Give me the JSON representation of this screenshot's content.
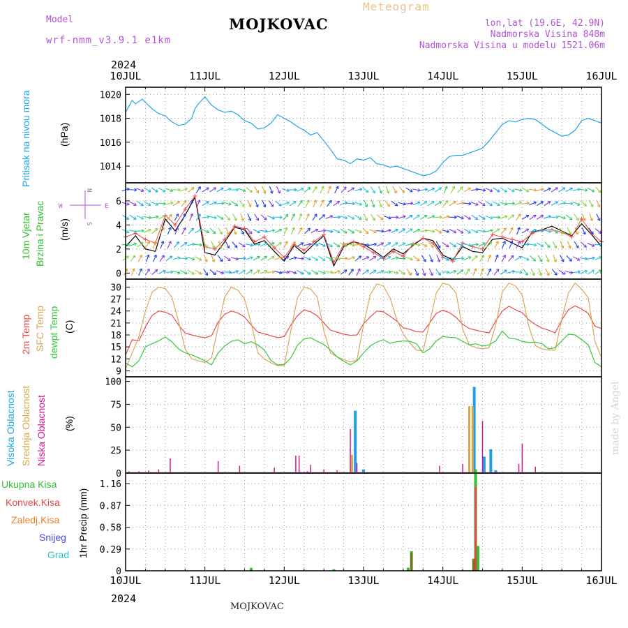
{
  "header": {
    "model_label": "Model",
    "model_name": "wrf-nmm_v3.9.1 e1km",
    "title": "MOJKOVAC",
    "meteogram_label": "Meteogram",
    "lonlat": "lon,lat (19.6E, 42.9N)",
    "elevation": "Nadmorska Visina 848m",
    "model_elevation": "Nadmorska Visina u modelu 1521.06m"
  },
  "footer": {
    "station": "MOJKOVAC",
    "credit": "made by Angel"
  },
  "axis_x": {
    "year": "2024",
    "labels": [
      "10JUL",
      "11JUL",
      "12JUL",
      "13JUL",
      "14JUL",
      "15JUL",
      "16JUL"
    ]
  },
  "colors": {
    "pressure": "#1ea6e6",
    "temp2m": "#e84a4a",
    "sfc": "#dba65a",
    "dewpt": "#33c83a",
    "high": "#1e9fe8",
    "mid": "#d6a84a",
    "low": "#d6168e",
    "total": "#2fbf2f",
    "conv": "#e24747",
    "frozen": "#f07f2a",
    "snow": "#4a4ae0",
    "graupel": "#2ac6c6"
  },
  "panels": {
    "pressure": {
      "label": "Pritisak na nivou mora",
      "unit": "(hPa)"
    },
    "wind": {
      "label1": "10m Vjetar",
      "label2": "Brzina i Pravac",
      "unit": "(m/s)",
      "compass": [
        "N",
        "S",
        "W",
        "E"
      ]
    },
    "temp": {
      "label1": "2m Temp",
      "label2": "SFC Temp",
      "label3": "dewpt Temp",
      "unit": "(C)"
    },
    "cloud": {
      "label1": "Visoka Oblacnost",
      "label2": "Srednja Oblacnost",
      "label3": "Niska Oblacnost",
      "unit": "(%)"
    },
    "precip": {
      "legend": [
        "Ukupna Kisa",
        "Konvek.Kisa",
        "Zaledj.Kisa",
        "Snijeg",
        "Grad"
      ],
      "unit": "1hr Precip (mm)"
    }
  },
  "chart_data": [
    {
      "type": "line",
      "name": "pressure",
      "ylim": [
        1012.6,
        1020.6
      ],
      "yticks": [
        1014,
        1016,
        1018,
        1020
      ],
      "x": [
        0,
        2,
        3,
        5,
        8,
        10,
        12,
        14,
        16,
        18,
        20,
        21,
        22,
        24,
        26,
        28,
        30,
        32,
        34,
        36,
        38,
        40,
        42,
        44,
        46,
        48,
        50,
        52,
        54,
        56,
        58,
        60,
        62,
        64,
        66,
        68,
        70,
        72,
        74,
        76,
        78,
        80,
        82,
        84,
        86,
        88,
        90,
        92,
        94,
        96,
        98,
        100,
        102,
        104,
        106,
        108,
        110,
        112,
        114,
        116,
        118,
        120,
        122,
        124,
        126,
        128,
        130,
        132,
        134,
        136,
        138,
        140,
        142,
        144
      ],
      "series": [
        {
          "values": [
            1018.5,
            1019.5,
            1019.2,
            1019.6,
            1018.8,
            1018.4,
            1018.2,
            1017.7,
            1017.4,
            1017.5,
            1018.0,
            1018.8,
            1019.2,
            1019.8,
            1019.1,
            1018.7,
            1018.5,
            1018.6,
            1018.3,
            1017.8,
            1017.6,
            1017.1,
            1017.2,
            1017.6,
            1018.3,
            1018.0,
            1017.7,
            1017.3,
            1017.0,
            1016.6,
            1016.8,
            1016.1,
            1015.4,
            1014.6,
            1014.5,
            1014.2,
            1014.6,
            1014.5,
            1014.7,
            1014.2,
            1014.1,
            1013.9,
            1014.0,
            1013.8,
            1013.6,
            1013.4,
            1013.2,
            1013.3,
            1013.6,
            1014.3,
            1014.8,
            1014.9,
            1014.9,
            1015.1,
            1015.3,
            1015.5,
            1016.1,
            1016.8,
            1017.5,
            1017.8,
            1017.7,
            1017.9,
            1018.0,
            1017.9,
            1017.5,
            1017.1,
            1016.8,
            1016.5,
            1016.6,
            1017.0,
            1017.8,
            1018.0,
            1017.8,
            1017.6
          ]
        }
      ]
    },
    {
      "type": "line",
      "name": "wind",
      "ylim": [
        -0.5,
        7.5
      ],
      "yticks": [
        0,
        2,
        4,
        6
      ],
      "x": [
        0,
        3,
        6,
        9,
        12,
        15,
        18,
        21,
        24,
        27,
        30,
        33,
        36,
        39,
        42,
        45,
        48,
        51,
        54,
        57,
        60,
        63,
        66,
        69,
        72,
        75,
        78,
        81,
        84,
        87,
        90,
        93,
        96,
        99,
        102,
        105,
        108,
        111,
        114,
        117,
        120,
        123,
        126,
        129,
        132,
        135,
        138,
        141,
        144
      ],
      "series": [
        {
          "name": "speed",
          "values": [
            2.2,
            3.1,
            2.0,
            1.8,
            4.5,
            3.5,
            4.8,
            6.3,
            1.7,
            1.5,
            2.6,
            3.8,
            3.6,
            2.4,
            2.7,
            1.8,
            1.0,
            2.3,
            1.6,
            2.4,
            3.1,
            0.6,
            2.2,
            2.6,
            2.4,
            1.9,
            1.3,
            2.0,
            1.6,
            2.3,
            2.9,
            2.7,
            1.5,
            1.1,
            2.2,
            1.8,
            1.7,
            2.8,
            2.9,
            2.5,
            2.1,
            3.4,
            3.6,
            3.9,
            3.5,
            3.1,
            4.1,
            3.2,
            2.2
          ]
        },
        {
          "name": "gust",
          "values": [
            3.0,
            3.3,
            2.8,
            2.5,
            4.8,
            4.0,
            5.3,
            6.4,
            2.2,
            2.0,
            2.8,
            3.9,
            3.7,
            2.6,
            3.0,
            2.1,
            1.3,
            2.4,
            1.9,
            2.6,
            3.2,
            0.9,
            2.4,
            2.6,
            2.2,
            1.7,
            1.2,
            1.8,
            1.4,
            2.4,
            2.9,
            2.5,
            1.3,
            1.0,
            2.5,
            2.2,
            2.0,
            3.2,
            3.0,
            2.8,
            2.6,
            3.3,
            3.6,
            3.6,
            3.4,
            3.0,
            4.5,
            3.3,
            2.6
          ]
        }
      ]
    },
    {
      "type": "line",
      "name": "temperature",
      "ylim": [
        7.5,
        32
      ],
      "yticks": [
        9,
        12,
        15,
        18,
        21,
        24,
        27,
        30
      ],
      "x": [
        0,
        2,
        4,
        6,
        8,
        10,
        12,
        14,
        16,
        18,
        20,
        22,
        24,
        26,
        28,
        30,
        32,
        34,
        36,
        38,
        40,
        42,
        44,
        46,
        48,
        50,
        52,
        54,
        56,
        58,
        60,
        62,
        64,
        66,
        68,
        70,
        72,
        74,
        76,
        78,
        80,
        82,
        84,
        86,
        88,
        90,
        92,
        94,
        96,
        98,
        100,
        102,
        104,
        106,
        108,
        110,
        112,
        114,
        116,
        118,
        120,
        122,
        124,
        126,
        128,
        130,
        132,
        134,
        136,
        138,
        140,
        142,
        144
      ],
      "series": [
        {
          "name": "2m",
          "values": [
            13,
            16.8,
            16.5,
            20,
            22.9,
            24,
            23.7,
            23,
            20.5,
            18.5,
            18,
            17.6,
            17.3,
            17.8,
            21.2,
            23.2,
            24,
            23.5,
            22.5,
            20.5,
            18.7,
            18.3,
            17.8,
            17.3,
            17.6,
            20.5,
            22.8,
            24.3,
            23.8,
            22.8,
            21,
            19.2,
            18.7,
            18.2,
            17.9,
            18.0,
            20.8,
            22.5,
            24,
            23.8,
            22.7,
            21.5,
            19.8,
            19.4,
            18.8,
            18.7,
            21,
            23.4,
            24.2,
            23.6,
            22.4,
            20.7,
            19.6,
            19.2,
            18.8,
            18.5,
            21.5,
            24,
            25.2,
            24.3,
            23.6,
            21.8,
            20.6,
            19.7,
            19.2,
            18.5,
            21.8,
            24.3,
            25.3,
            24.5,
            23.4,
            20.2,
            19.6
          ]
        },
        {
          "name": "SFC",
          "values": [
            9.5,
            13.5,
            17.5,
            24,
            28.7,
            30,
            29.6,
            27.5,
            21.5,
            14.5,
            12,
            11.5,
            11.1,
            12.2,
            20,
            27.5,
            30,
            29.2,
            27,
            21,
            13.5,
            12,
            11,
            10.3,
            10.3,
            19,
            27.3,
            30,
            29.5,
            27.5,
            19,
            13.5,
            12.5,
            11.8,
            11.2,
            11.7,
            20.5,
            28,
            30.8,
            30.3,
            27.3,
            22,
            18.2,
            16,
            14.2,
            14,
            21,
            28.5,
            31,
            30.5,
            28.5,
            19.5,
            15.5,
            14.8,
            14.5,
            14.8,
            20.5,
            28.8,
            31,
            30.3,
            28,
            20.2,
            15.3,
            14.5,
            14.2,
            14.2,
            22,
            28.5,
            31,
            29.5,
            27.3,
            16.5,
            12.3
          ]
        },
        {
          "name": "dewpt",
          "values": [
            11,
            10,
            11.5,
            15,
            15.8,
            16.5,
            17.5,
            16.3,
            14.5,
            13.5,
            13,
            12.3,
            11.5,
            10.5,
            13.5,
            15.2,
            16.4,
            16.8,
            15.8,
            16.3,
            15.5,
            14.2,
            11.6,
            10.5,
            10.6,
            12.2,
            15.4,
            17,
            17.3,
            16.4,
            15.6,
            14.2,
            12.5,
            11.4,
            10.5,
            11.5,
            13.5,
            15.2,
            16.2,
            16.8,
            15.9,
            16.3,
            16.5,
            16.4,
            15.8,
            13.5,
            14.5,
            16.5,
            17.6,
            17.4,
            17.3,
            16.4,
            15.5,
            15.8,
            15.2,
            15.5,
            16.5,
            19,
            17.2,
            17,
            16.4,
            16.1,
            16.2,
            15.8,
            14.5,
            14.8,
            16.5,
            18.2,
            18,
            16.8,
            15.5,
            11.1,
            10.0
          ]
        }
      ]
    },
    {
      "type": "bar",
      "name": "cloud",
      "ylim": [
        0,
        105
      ],
      "yticks": [
        0,
        25,
        50,
        75,
        100
      ],
      "series": [
        {
          "name": "high",
          "x": [
            69.5,
            72,
            105.5,
            108.5,
            110.5,
            112
          ],
          "values": [
            68,
            4,
            94,
            18,
            26,
            3
          ]
        },
        {
          "name": "mid",
          "x": [
            68.5,
            104,
            105,
            106
          ],
          "values": [
            20,
            73,
            73,
            4
          ]
        },
        {
          "name": "low",
          "x": [
            1,
            4,
            7,
            10,
            13.5,
            28,
            34.5,
            45,
            51.5,
            52.5,
            55,
            56,
            60,
            64,
            68,
            70,
            95,
            102,
            108,
            119,
            120,
            124
          ],
          "values": [
            2,
            2,
            3,
            4,
            16,
            13,
            8,
            6,
            19,
            19,
            2,
            9,
            4,
            3,
            48,
            11,
            8,
            10,
            57,
            10,
            32,
            7
          ]
        }
      ]
    },
    {
      "type": "bar",
      "name": "precip",
      "ylim": [
        0,
        1.3
      ],
      "yticks": [
        0,
        0.29,
        0.58,
        0.87,
        1.16
      ],
      "series": [
        {
          "name": "total",
          "x": [
            38,
            63,
            85.5,
            86.5,
            105.3,
            105.9,
            106.6
          ],
          "values": [
            0.04,
            0.02,
            0.04,
            0.26,
            0.16,
            1.35,
            0.33
          ]
        },
        {
          "name": "conv",
          "x": [
            105.9
          ],
          "values": [
            1.12
          ]
        },
        {
          "name": "frozen",
          "x": [
            105.3,
            86.5
          ],
          "values": [
            0.16,
            0.24
          ]
        }
      ]
    }
  ]
}
